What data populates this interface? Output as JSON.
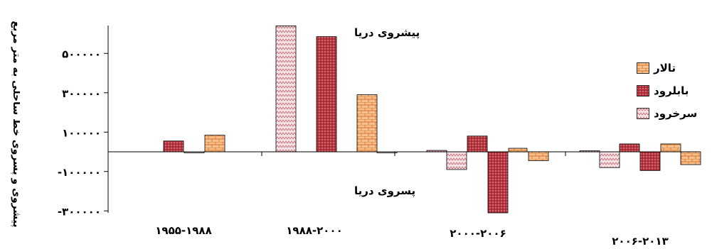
{
  "chart_data": {
    "type": "bar",
    "ylabel": "پیشروی و پسروی خط ساحلی به متر مربع",
    "categories": [
      "۱۹۵۵-۱۹۸۸",
      "۱۹۸۸-۲۰۰۰",
      "۲۰۰۰-۲۰۰۶",
      "۲۰۰۶-۲۰۱۳"
    ],
    "yticks": [
      {
        "value": 500000,
        "label": "۵۰۰۰۰۰"
      },
      {
        "value": 300000,
        "label": "۳۰۰۰۰۰"
      },
      {
        "value": 100000,
        "label": "۱۰۰۰۰۰"
      },
      {
        "value": -100000,
        "label": "-۱۰۰۰۰۰"
      },
      {
        "value": -300000,
        "label": "-۳۰۰۰۰۰"
      }
    ],
    "ylim": [
      -310000,
      640000
    ],
    "series": [
      {
        "name": "سرخرود",
        "color": "#f2c9cf",
        "pattern": "zigzag",
        "values": [
          -5000,
          640000,
          7000,
          5000
        ]
      },
      {
        "name": "بابلرود",
        "color": "#c0504d",
        "pattern": "dots",
        "values": [
          55000,
          585000,
          80000,
          40000
        ]
      },
      {
        "name": "تالار",
        "color": "#f4b183",
        "pattern": "brick",
        "values": [
          85000,
          290000,
          18000,
          40000
        ]
      }
    ],
    "group_order": [
      [
        "بابلرود",
        "سرخرود",
        "تالار"
      ],
      [
        "سرخرود",
        "بابلرود",
        "تالار",
        "سرخرود"
      ],
      [
        "سرخرود",
        "سرخرود",
        "بابلرود",
        "بابلرود",
        "تالار",
        "تالار"
      ],
      [
        "سرخرود",
        "سرخرود",
        "بابلرود",
        "بابلرود",
        "تالار",
        "تالار"
      ]
    ],
    "bars": [
      {
        "series": "بابلرود",
        "category": "۱۹۵۵-۱۹۸۸",
        "value": 55000
      },
      {
        "series": "سرخرود",
        "category": "۱۹۵۵-۱۹۸۸",
        "value": -5000
      },
      {
        "series": "تالار",
        "category": "۱۹۵۵-۱۹۸۸",
        "value": 85000
      },
      {
        "series": "سرخرود",
        "category": "۱۹۸۸-۲۰۰۰",
        "value": 640000
      },
      {
        "series": "بابلرود",
        "category": "۱۹۸۸-۲۰۰۰",
        "value": 585000
      },
      {
        "series": "تالار",
        "category": "۱۹۸۸-۲۰۰۰",
        "value": 290000
      },
      {
        "series": "سرخرود",
        "category": "۱۹۸۸-۲۰۰۰",
        "value": -5000
      },
      {
        "series": "سرخرود",
        "category": "۲۰۰۰-۲۰۰۶",
        "value": 7000
      },
      {
        "series": "سرخرود",
        "category": "۲۰۰۰-۲۰۰۶",
        "value": -90000
      },
      {
        "series": "بابلرود",
        "category": "۲۰۰۰-۲۰۰۶",
        "value": 80000
      },
      {
        "series": "بابلرود",
        "category": "۲۰۰۰-۲۰۰۶",
        "value": -310000
      },
      {
        "series": "تالار",
        "category": "۲۰۰۰-۲۰۰۶",
        "value": 18000
      },
      {
        "series": "تالار",
        "category": "۲۰۰۰-۲۰۰۶",
        "value": -45000
      },
      {
        "series": "سرخرود",
        "category": "۲۰۰۶-۲۰۱۳",
        "value": 5000
      },
      {
        "series": "سرخرود",
        "category": "۲۰۰۶-۲۰۱۳",
        "value": -80000
      },
      {
        "series": "بابلرود",
        "category": "۲۰۰۶-۲۰۱۳",
        "value": 40000
      },
      {
        "series": "بابلرود",
        "category": "۲۰۰۶-۲۰۱۳",
        "value": -95000
      },
      {
        "series": "تالار",
        "category": "۲۰۰۶-۲۰۱۳",
        "value": 40000
      },
      {
        "series": "تالار",
        "category": "۲۰۰۶-۲۰۱۳",
        "value": -65000
      }
    ],
    "annotations": {
      "advance": "پیشروی دریا",
      "retreat": "پسروی دریا"
    },
    "legend": {
      "position": "right",
      "items": [
        "تالار",
        "بابلرود",
        "سرخرود"
      ]
    }
  }
}
